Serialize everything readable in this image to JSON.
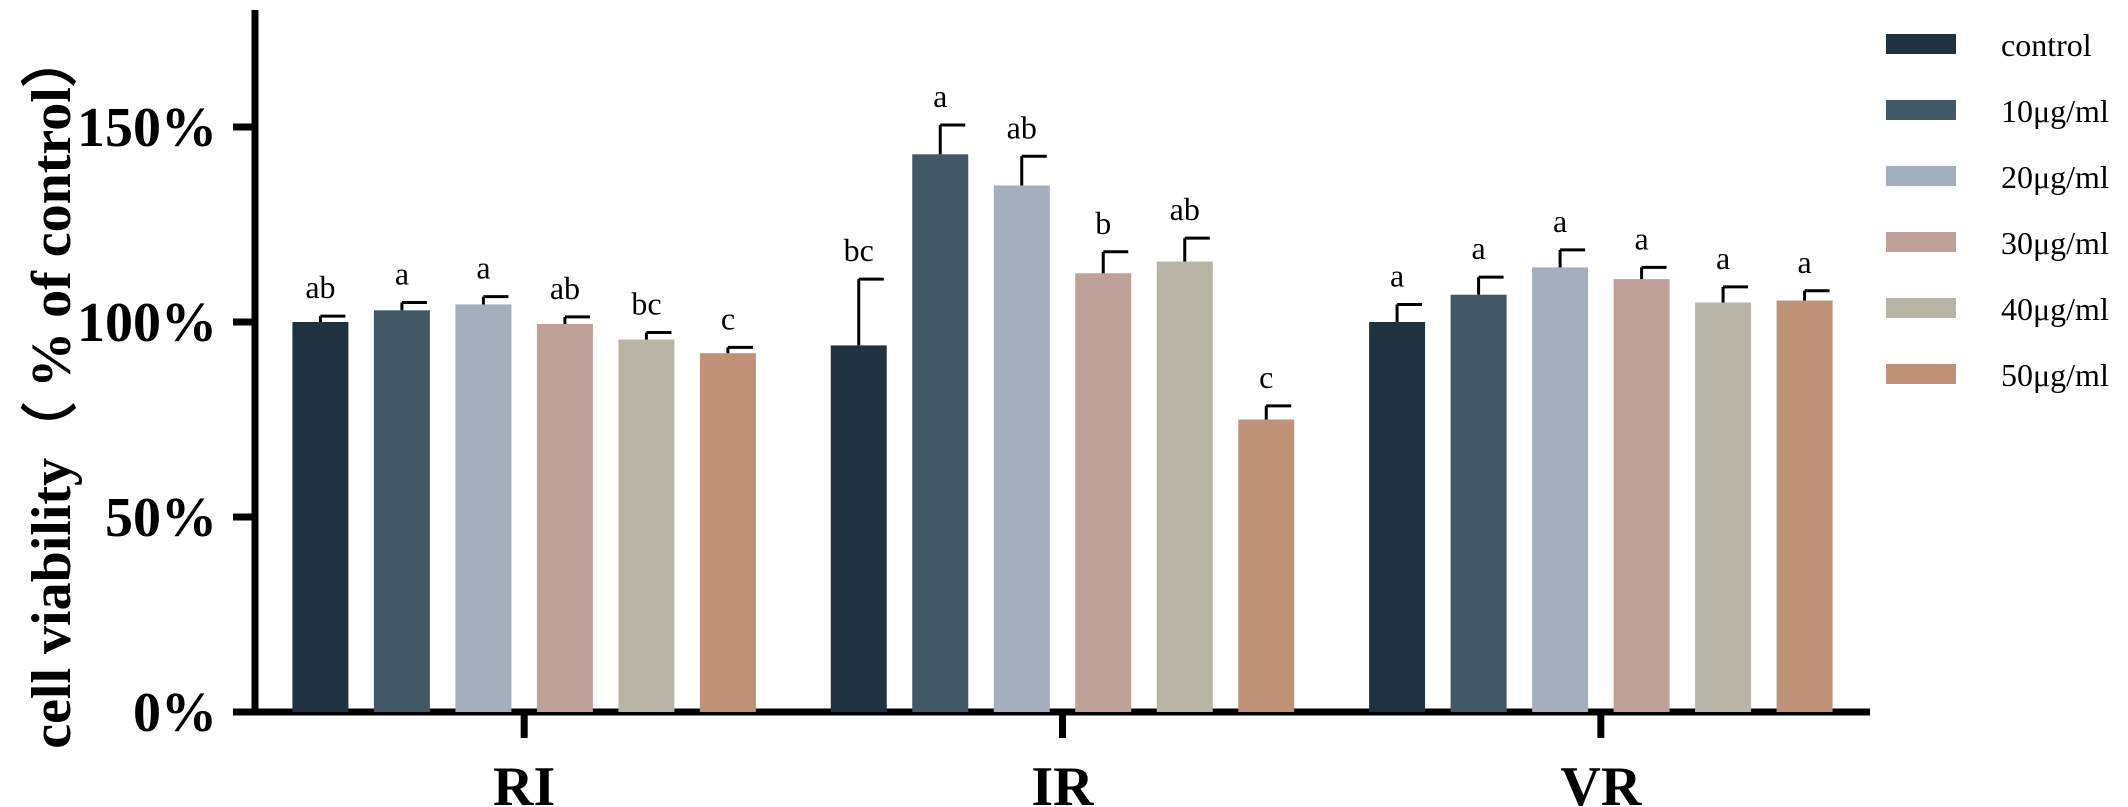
{
  "chart_data": {
    "type": "bar",
    "title": "",
    "xlabel": "",
    "ylabel": "cell viability（ % of control）",
    "ylim": [
      0,
      180
    ],
    "yticks": [
      0,
      50,
      100,
      150
    ],
    "ytick_labels": [
      "0%",
      "50%",
      "100%",
      "150%"
    ],
    "categories": [
      "RI",
      "IR",
      "VR"
    ],
    "grid": false,
    "legend_position": "right",
    "series": [
      {
        "name": "control",
        "color": "#1f3241",
        "values": [
          100,
          94,
          100
        ],
        "errors": [
          1.5,
          17,
          4.5
        ],
        "labels": [
          "ab",
          "bc",
          "a"
        ]
      },
      {
        "name": "10μg/ml",
        "color": "#435866",
        "values": [
          103,
          143,
          107
        ],
        "errors": [
          2,
          7.5,
          4.5
        ],
        "labels": [
          "a",
          "a",
          "a"
        ]
      },
      {
        "name": "20μg/ml",
        "color": "#a4aebd",
        "values": [
          104.5,
          135,
          114
        ],
        "errors": [
          2,
          7.5,
          4.5
        ],
        "labels": [
          "a",
          "ab",
          "a"
        ]
      },
      {
        "name": "30μg/ml",
        "color": "#bea199",
        "values": [
          99.5,
          112.5,
          111
        ],
        "errors": [
          1.8,
          5.5,
          3
        ],
        "labels": [
          "ab",
          "b",
          "a"
        ]
      },
      {
        "name": "40μg/ml",
        "color": "#b8b5a6",
        "values": [
          95.5,
          115.5,
          105
        ],
        "errors": [
          1.8,
          6,
          4
        ],
        "labels": [
          "bc",
          "ab",
          "a"
        ]
      },
      {
        "name": "50μg/ml",
        "color": "#bf9277",
        "values": [
          92,
          75,
          105.5
        ],
        "errors": [
          1.5,
          3.5,
          2.5
        ],
        "labels": [
          "c",
          "c",
          "a"
        ]
      }
    ]
  }
}
